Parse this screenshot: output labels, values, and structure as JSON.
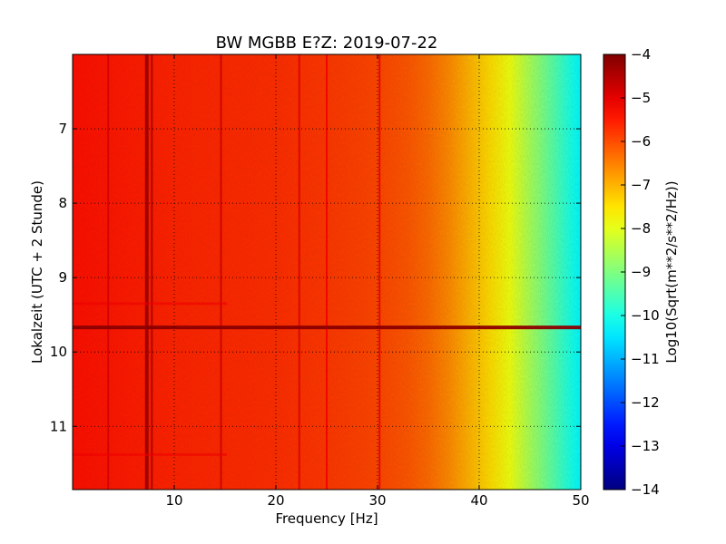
{
  "chart_data": {
    "type": "heatmap",
    "title": "BW MGBB E?Z: 2019-07-22",
    "xlabel": "Frequency [Hz]",
    "ylabel": "Lokalzeit (UTC + 2 Stunde)",
    "xlim": [
      0,
      50
    ],
    "ylim": [
      6.0,
      11.85
    ],
    "y_inverted": true,
    "x_ticks": [
      10,
      20,
      30,
      40,
      50
    ],
    "y_ticks": [
      7,
      8,
      9,
      10,
      11
    ],
    "grid": true,
    "grid_style": "dotted",
    "colormap": "jet",
    "colorbar": {
      "label": "Log10(Sqrt(m**2/s**2/Hz))",
      "range": [
        -14,
        -4
      ],
      "ticks": [
        -4,
        -5,
        -6,
        -7,
        -8,
        -9,
        -10,
        -11,
        -12,
        -13,
        -14
      ]
    },
    "spectrum_profile": {
      "frequency_hz": [
        0,
        5,
        10,
        15,
        20,
        25,
        30,
        33,
        35,
        37,
        39,
        41,
        43,
        45,
        47,
        49,
        50
      ],
      "level": [
        -5.4,
        -5.5,
        -5.6,
        -5.65,
        -5.7,
        -5.8,
        -5.95,
        -6.1,
        -6.3,
        -6.6,
        -7.0,
        -7.4,
        -7.9,
        -8.6,
        -9.3,
        -10.0,
        -10.3
      ]
    },
    "vertical_lines": [
      {
        "frequency_hz": 3.5,
        "level": -4.9
      },
      {
        "frequency_hz": 7.3,
        "level": -4.3
      },
      {
        "frequency_hz": 7.8,
        "level": -4.5
      },
      {
        "frequency_hz": 14.6,
        "level": -4.8
      },
      {
        "frequency_hz": 22.3,
        "level": -5.0
      },
      {
        "frequency_hz": 25.0,
        "level": -5.2
      },
      {
        "frequency_hz": 30.2,
        "level": -5.1
      }
    ],
    "horizontal_events": [
      {
        "time": 9.67,
        "level": -4.2
      },
      {
        "time": 9.35,
        "level": -5.2
      },
      {
        "time": 11.38,
        "level": -5.2
      }
    ]
  }
}
